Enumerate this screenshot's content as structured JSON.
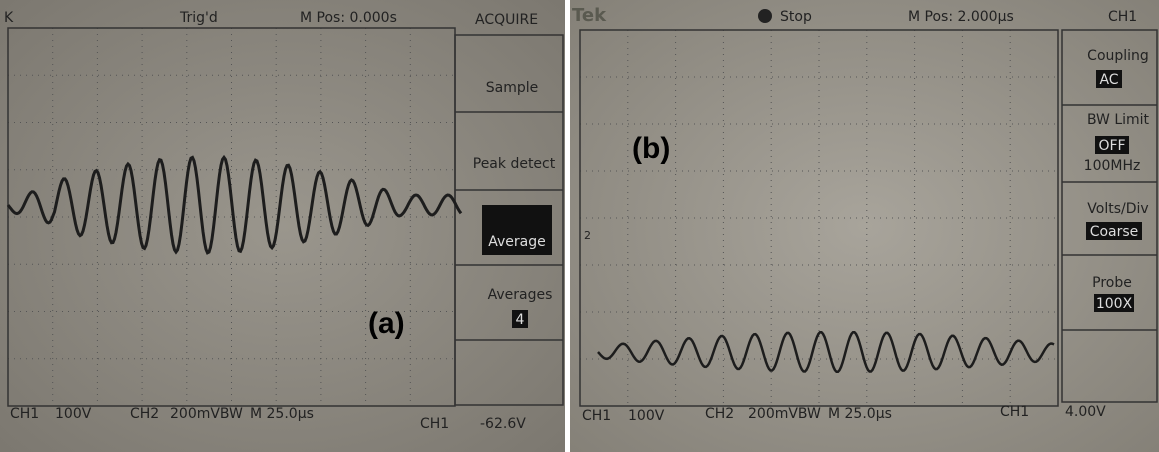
{
  "panel_a": {
    "label": "(a)",
    "header": {
      "mark": "K",
      "status": "Trig'd",
      "position": "M Pos: 0.000s",
      "menu_title": "ACQUIRE"
    },
    "menu": [
      {
        "label": "Sample"
      },
      {
        "label": "Peak detect"
      },
      {
        "label": "Average"
      },
      {
        "label": "Averages",
        "value": "4"
      }
    ],
    "footer": {
      "ch1": "CH1",
      "ch1_scale": "100V",
      "ch2": "CH2",
      "ch2_scale": "200mVBW",
      "time": "M 25.0µs",
      "trigger_source": "CH1",
      "trigger_level": "-62.6V"
    }
  },
  "panel_b": {
    "label": "(b)",
    "header": {
      "brand": "Tek",
      "status": "Stop",
      "position": "M Pos: 2.000µs",
      "menu_title": "CH1"
    },
    "marker": "2",
    "menu": [
      {
        "label": "Coupling",
        "value": "AC"
      },
      {
        "label": "BW Limit",
        "value": "OFF",
        "extra": "100MHz"
      },
      {
        "label": "Volts/Div",
        "value": "Coarse"
      },
      {
        "label": "Probe",
        "value": "100X"
      }
    ],
    "footer": {
      "ch1": "CH1",
      "ch1_scale": "100V",
      "ch2": "CH2",
      "ch2_scale": "200mVBW",
      "time": "M 25.0µs",
      "trigger_source": "CH1",
      "trigger_level": "4.00V"
    }
  }
}
